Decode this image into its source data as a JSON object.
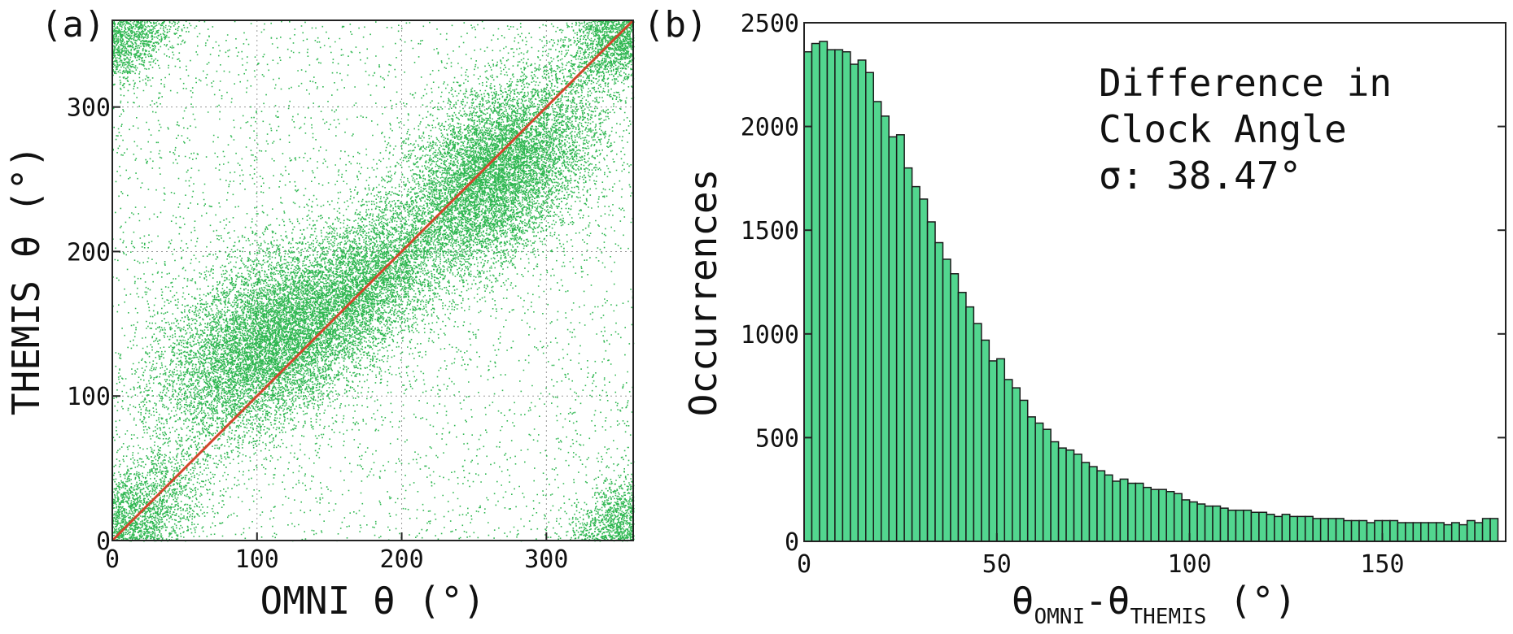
{
  "chart_data": [
    {
      "type": "scatter",
      "panel_label": "(a)",
      "xlabel": "OMNI θ (°)",
      "ylabel": "THEMIS θ (°)",
      "xlim": [
        0,
        360
      ],
      "ylim": [
        0,
        360
      ],
      "xticks": [
        0,
        100,
        200,
        300
      ],
      "yticks": [
        0,
        100,
        200,
        300
      ],
      "x_tick_labels": [
        "0",
        "100",
        "200",
        "300"
      ],
      "y_tick_labels": [
        "0",
        "100",
        "200",
        "300"
      ],
      "grid": true,
      "point_color": "#0aaa32",
      "reference_line": {
        "from": [
          0,
          0
        ],
        "to": [
          360,
          360
        ],
        "color": "#d2452a"
      },
      "density_clusters": [
        {
          "center": [
            110,
            140
          ],
          "spread": [
            45,
            40
          ],
          "weight": 0.32
        },
        {
          "center": [
            265,
            255
          ],
          "spread": [
            40,
            40
          ],
          "weight": 0.3
        },
        {
          "center": [
            180,
            180
          ],
          "spread": [
            30,
            30
          ],
          "weight": 0.1
        },
        {
          "center": [
            20,
            20
          ],
          "spread": [
            25,
            25
          ],
          "weight": 0.06
        },
        {
          "center": [
            345,
            345
          ],
          "spread": [
            18,
            18
          ],
          "weight": 0.04
        },
        {
          "center": [
            345,
            15
          ],
          "spread": [
            18,
            18
          ],
          "weight": 0.03
        },
        {
          "center": [
            15,
            345
          ],
          "spread": [
            18,
            18
          ],
          "weight": 0.03
        }
      ],
      "uniform_background_fraction": 0.12
    },
    {
      "type": "bar",
      "panel_label": "(b)",
      "xlabel_main": "θ",
      "xlabel_sub1": "OMNI",
      "xlabel_mid": "-θ",
      "xlabel_sub2": "THEMIS",
      "xlabel_unit": " (°)",
      "ylabel": "Occurrences",
      "xlim": [
        0,
        182
      ],
      "ylim": [
        0,
        2500
      ],
      "xticks": [
        0,
        50,
        100,
        150
      ],
      "yticks": [
        0,
        500,
        1000,
        1500,
        2000,
        2500
      ],
      "x_tick_labels": [
        "0",
        "50",
        "100",
        "150"
      ],
      "y_tick_labels": [
        "0",
        "500",
        "1000",
        "1500",
        "2000",
        "2500"
      ],
      "bin_width": 2,
      "bin_start": 0,
      "bar_color": "#52d68f",
      "values": [
        2360,
        2400,
        2410,
        2370,
        2370,
        2360,
        2300,
        2320,
        2260,
        2120,
        2050,
        1950,
        1960,
        1800,
        1710,
        1650,
        1540,
        1440,
        1360,
        1290,
        1200,
        1130,
        1050,
        970,
        870,
        880,
        780,
        740,
        680,
        600,
        570,
        540,
        480,
        450,
        440,
        420,
        380,
        360,
        340,
        320,
        290,
        300,
        280,
        280,
        260,
        250,
        250,
        240,
        230,
        200,
        190,
        180,
        170,
        170,
        160,
        150,
        150,
        150,
        140,
        140,
        130,
        120,
        130,
        120,
        120,
        120,
        110,
        110,
        110,
        110,
        100,
        100,
        100,
        90,
        100,
        100,
        100,
        90,
        90,
        90,
        90,
        90,
        90,
        80,
        90,
        80,
        100,
        90,
        110,
        110
      ],
      "annotation_lines": [
        "Difference in",
        "Clock Angle",
        "σ: 38.47°"
      ]
    }
  ]
}
